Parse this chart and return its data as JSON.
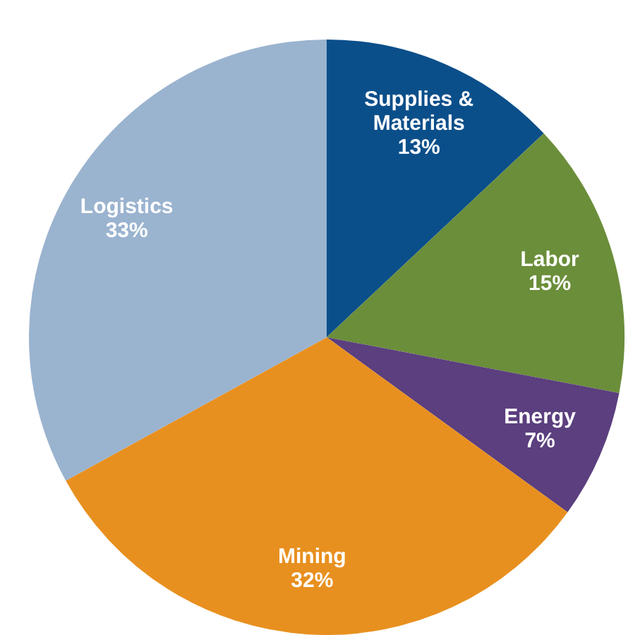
{
  "chart_data": {
    "type": "pie",
    "categories": [
      "Supplies & Materials",
      "Labor",
      "Energy",
      "Mining",
      "Logistics"
    ],
    "values": [
      13,
      15,
      7,
      32,
      33
    ],
    "value_labels": [
      "13%",
      "15%",
      "7%",
      "32%",
      "33%"
    ],
    "colors": [
      "#0b4f8a",
      "#6b8e3a",
      "#5b3f7e",
      "#e8901f",
      "#9ab3cf"
    ],
    "legend": false
  }
}
